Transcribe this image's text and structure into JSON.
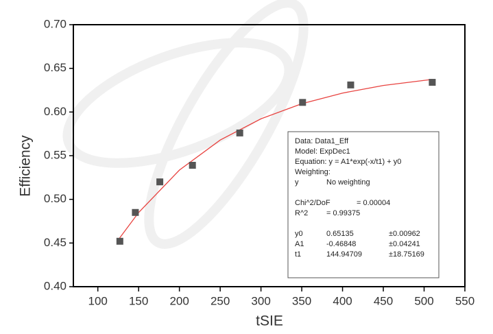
{
  "chart_data": {
    "type": "scatter",
    "x_label": "tSIE",
    "y_label": "Efficiency",
    "xlim": [
      70,
      550
    ],
    "ylim": [
      0.4,
      0.7
    ],
    "xticks": [
      100,
      150,
      200,
      250,
      300,
      350,
      400,
      450,
      500,
      550
    ],
    "yticks": [
      {
        "value": 0.4,
        "label": "0.40"
      },
      0.45,
      {
        "value": 0.5,
        "label": "0.50"
      },
      0.55,
      {
        "value": 0.6,
        "label": "0.60"
      },
      0.65,
      {
        "value": 0.7,
        "label": "0.70"
      }
    ],
    "series": [
      {
        "type": "scatter",
        "color": "#555555",
        "x": [
          127,
          146,
          176,
          216,
          274,
          351,
          410,
          510
        ],
        "values": [
          0.452,
          0.485,
          0.52,
          0.539,
          0.576,
          0.611,
          0.631,
          0.634
        ]
      },
      {
        "type": "line",
        "color": "#e8423f",
        "x": [
          125,
          150,
          200,
          250,
          300,
          350,
          400,
          450,
          510
        ],
        "values": [
          0.4536,
          0.4849,
          0.5335,
          0.5679,
          0.5922,
          0.6095,
          0.6217,
          0.6304,
          0.6374
        ]
      }
    ],
    "annotation": {
      "lines": [
        "Data: Data1_Eff",
        "Model: ExpDec1",
        "Equation: y = A1*exp(-x/t1) + y0",
        "Weighting:"
      ],
      "weighting": [
        "y",
        "No weighting"
      ],
      "stats": [
        [
          "Chi^2/DoF",
          "= 0.00004"
        ],
        [
          "R^2",
          "=  0.99375"
        ]
      ],
      "params": [
        [
          "y0",
          "0.65135",
          "±0.00962"
        ],
        [
          "A1",
          "-0.46848",
          "±0.04241"
        ],
        [
          "t1",
          "144.94709",
          "±18.75169"
        ]
      ]
    }
  }
}
